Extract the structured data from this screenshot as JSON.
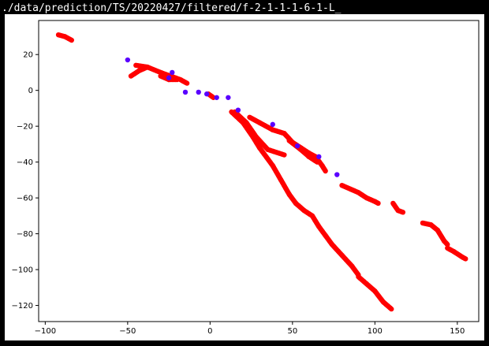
{
  "window": {
    "title": "./data/prediction/TS/20220427/filtered/f-2-1-1-1-6-1-L_"
  },
  "chart_data": {
    "type": "scatter",
    "title": "",
    "xlabel": "",
    "ylabel": "",
    "xlim": [
      -104,
      163
    ],
    "ylim": [
      -129,
      39
    ],
    "xticks": [
      -100,
      -50,
      0,
      50,
      100,
      150
    ],
    "yticks": [
      20,
      0,
      -20,
      -40,
      -60,
      -80,
      -100,
      -120
    ],
    "grid": false,
    "colors": {
      "red_points": "#ff0000",
      "blue_points": "#5a00ff",
      "axes": "#000000"
    },
    "blue_points": [
      {
        "x": -50,
        "y": 17
      },
      {
        "x": -23,
        "y": 10
      },
      {
        "x": -25,
        "y": 7
      },
      {
        "x": -15,
        "y": -1
      },
      {
        "x": -7,
        "y": -1
      },
      {
        "x": -2,
        "y": -2
      },
      {
        "x": 4,
        "y": -4
      },
      {
        "x": 11,
        "y": -4
      },
      {
        "x": 17,
        "y": -11
      },
      {
        "x": 38,
        "y": -19
      },
      {
        "x": 53,
        "y": -31
      },
      {
        "x": 66,
        "y": -37
      },
      {
        "x": 77,
        "y": -47
      }
    ],
    "red_segments": [
      {
        "points": [
          [
            -92,
            31
          ],
          [
            -88,
            30
          ],
          [
            -84,
            28
          ]
        ],
        "step": 0.8
      },
      {
        "points": [
          [
            -45,
            14
          ],
          [
            -38,
            13
          ],
          [
            -30,
            10
          ],
          [
            -24,
            8
          ],
          [
            -18,
            6
          ],
          [
            -14,
            4
          ]
        ],
        "step": 0.8
      },
      {
        "points": [
          [
            -48,
            8
          ],
          [
            -43,
            11
          ],
          [
            -38,
            13
          ]
        ],
        "step": 0.8
      },
      {
        "points": [
          [
            -30,
            8
          ],
          [
            -25,
            6
          ],
          [
            -20,
            6
          ]
        ],
        "step": 1.0
      },
      {
        "points": [
          [
            -1,
            -2
          ],
          [
            2,
            -4
          ]
        ],
        "step": 0.8
      },
      {
        "points": [
          [
            13,
            -12
          ],
          [
            20,
            -18
          ],
          [
            26,
            -26
          ],
          [
            30,
            -32
          ],
          [
            38,
            -42
          ],
          [
            43,
            -50
          ],
          [
            48,
            -58
          ],
          [
            52,
            -63
          ],
          [
            57,
            -67
          ],
          [
            62,
            -70
          ],
          [
            66,
            -76
          ],
          [
            70,
            -81
          ],
          [
            74,
            -86
          ],
          [
            80,
            -92
          ],
          [
            86,
            -98
          ],
          [
            90,
            -103
          ]
        ],
        "step": 0.6
      },
      {
        "points": [
          [
            90,
            -104
          ],
          [
            95,
            -108
          ],
          [
            100,
            -112
          ],
          [
            105,
            -118
          ],
          [
            110,
            -122
          ]
        ],
        "step": 0.6
      },
      {
        "points": [
          [
            15,
            -12
          ],
          [
            22,
            -18
          ],
          [
            28,
            -26
          ],
          [
            35,
            -33
          ],
          [
            45,
            -36
          ]
        ],
        "step": 0.7
      },
      {
        "points": [
          [
            24,
            -15
          ],
          [
            30,
            -18
          ],
          [
            38,
            -22
          ],
          [
            45,
            -24
          ],
          [
            50,
            -29
          ],
          [
            55,
            -32
          ],
          [
            60,
            -35
          ],
          [
            64,
            -37
          ],
          [
            68,
            -42
          ],
          [
            70,
            -45
          ]
        ],
        "step": 0.6
      },
      {
        "points": [
          [
            48,
            -28
          ],
          [
            55,
            -33
          ],
          [
            60,
            -37
          ],
          [
            65,
            -40
          ]
        ],
        "step": 0.8
      },
      {
        "points": [
          [
            80,
            -53
          ],
          [
            90,
            -57
          ],
          [
            95,
            -60
          ],
          [
            100,
            -62
          ],
          [
            102,
            -63
          ]
        ],
        "step": 0.7
      },
      {
        "points": [
          [
            111,
            -63
          ],
          [
            114,
            -67
          ],
          [
            117,
            -68
          ]
        ],
        "step": 0.7
      },
      {
        "points": [
          [
            129,
            -74
          ],
          [
            134,
            -75
          ],
          [
            138,
            -78
          ],
          [
            142,
            -84
          ],
          [
            144,
            -86
          ]
        ],
        "step": 0.6
      },
      {
        "points": [
          [
            144,
            -88
          ],
          [
            148,
            -90
          ],
          [
            153,
            -93
          ],
          [
            155,
            -94
          ]
        ],
        "step": 0.7
      }
    ]
  }
}
